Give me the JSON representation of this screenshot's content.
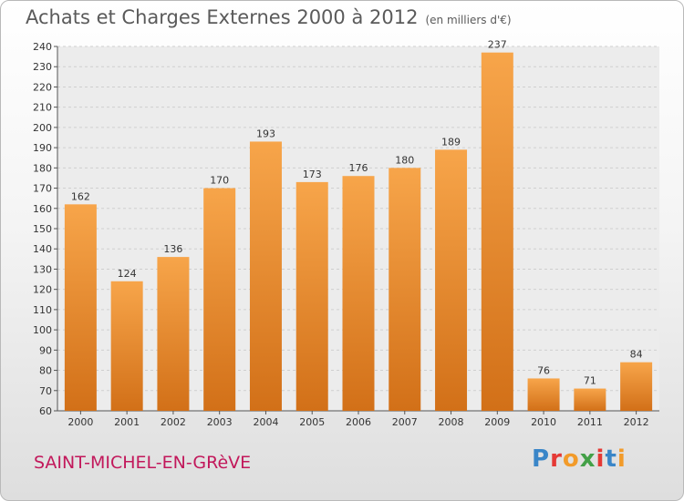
{
  "header": {
    "title": "Achats et Charges Externes 2000 à 2012",
    "unit": "(en milliers d'€)"
  },
  "footer": {
    "commune": "SAINT-MICHEL-EN-GRèVE",
    "logo": [
      "P",
      "r",
      "o",
      "x",
      "i",
      "t",
      "i"
    ]
  },
  "colors": {
    "bar_light": "#f7a54a",
    "bar_dark": "#d27018",
    "commune": "#c2185b"
  },
  "chart_data": {
    "type": "bar",
    "title": "Achats et Charges Externes 2000 à 2012",
    "subtitle": "(en milliers d'€)",
    "categories": [
      "2000",
      "2001",
      "2002",
      "2003",
      "2004",
      "2005",
      "2006",
      "2007",
      "2008",
      "2009",
      "2010",
      "2011",
      "2012"
    ],
    "values": [
      162,
      124,
      136,
      170,
      193,
      173,
      176,
      180,
      189,
      237,
      76,
      71,
      84
    ],
    "ylim": [
      60,
      240
    ],
    "yticks": [
      60,
      70,
      80,
      90,
      100,
      110,
      120,
      130,
      140,
      150,
      160,
      170,
      180,
      190,
      200,
      210,
      220,
      230,
      240
    ],
    "grid": true,
    "legend": "none"
  }
}
